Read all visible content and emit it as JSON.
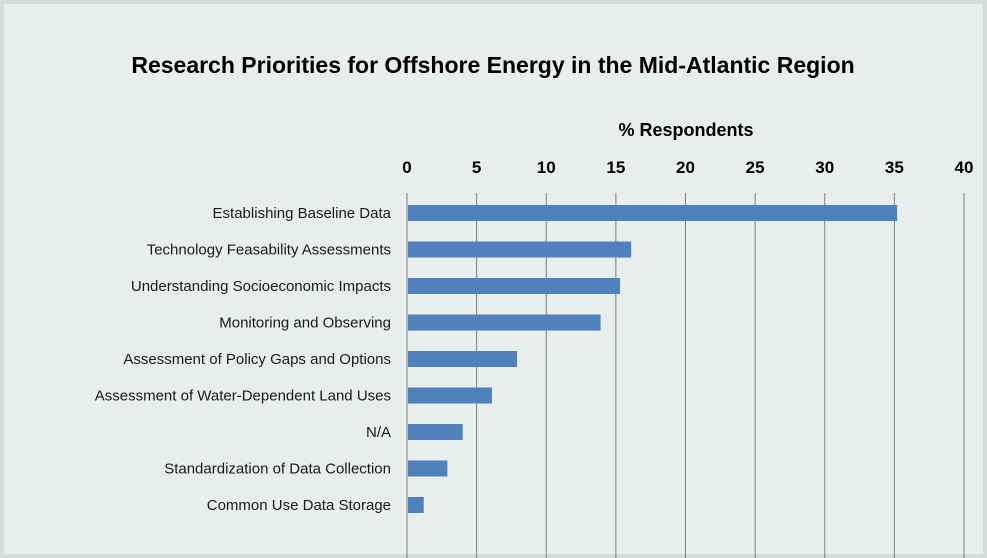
{
  "chart_data": {
    "type": "bar",
    "orientation": "horizontal",
    "title": "Research Priorities for Offshore Energy in the Mid-Atlantic Region",
    "xlabel": "% Respondents",
    "ylabel": "",
    "xlim": [
      0,
      40
    ],
    "ticks": [
      0,
      5,
      10,
      15,
      20,
      25,
      30,
      35,
      40
    ],
    "tick_labels": [
      "0",
      "5",
      "10",
      "15",
      "20",
      "25",
      "30",
      "35",
      "40"
    ],
    "axis_position": "top",
    "grid": true,
    "categories": [
      "Establishing Baseline Data",
      "Technology Feasability Assessments",
      "Understanding Socioeconomic Impacts",
      "Monitoring and Observing",
      "Assessment of Policy Gaps and Options",
      "Assessment of Water-Dependent Land Uses",
      "N/A",
      "Standardization of Data Collection",
      "Common Use Data Storage"
    ],
    "values": [
      35.2,
      16.1,
      15.3,
      13.9,
      7.9,
      6.1,
      4.0,
      2.9,
      1.2
    ],
    "bar_color": "#4f81bd",
    "background_color": "#e8eded"
  }
}
